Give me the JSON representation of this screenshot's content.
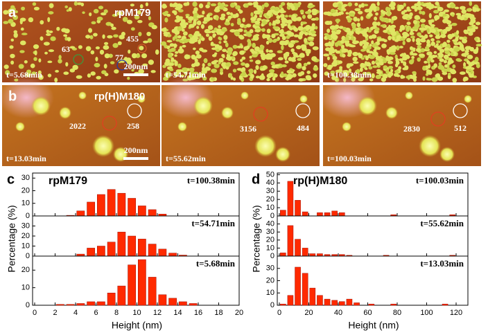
{
  "panel_a": {
    "letter": "a",
    "sample": "rpM179",
    "scale_bar": "200nm",
    "images": [
      {
        "time": "t=5.68min",
        "labels": [
          "63",
          "77",
          "455"
        ]
      },
      {
        "time": "t=54.71min"
      },
      {
        "time": "t=100.38min"
      }
    ]
  },
  "panel_b": {
    "letter": "b",
    "sample": "rp(H)M180",
    "scale_bar": "200nm",
    "images": [
      {
        "time": "t=13.03min",
        "labels": [
          "2022",
          "258"
        ]
      },
      {
        "time": "t=55.62min",
        "labels": [
          "3156",
          "484"
        ]
      },
      {
        "time": "t=100.03min",
        "labels": [
          "2830",
          "512"
        ]
      }
    ]
  },
  "chart_data": [
    {
      "type": "histogram",
      "letter": "c",
      "title": "rpM179",
      "ylabel": "Percentage (%)",
      "annotation": "t=100.38min",
      "color": "#ff2a00",
      "bins": [
        3,
        4,
        5,
        6,
        7,
        8,
        9,
        10,
        11,
        12,
        13
      ],
      "values": [
        0.5,
        4,
        11,
        17,
        21,
        18,
        14,
        8,
        5,
        1.5
      ],
      "xlim": [
        0,
        20
      ],
      "ylim": [
        0,
        34
      ],
      "yticks": [
        0,
        10,
        20,
        30
      ]
    },
    {
      "type": "histogram",
      "annotation": "t=54.71min",
      "color": "#ff2a00",
      "bins": [
        4,
        5,
        6,
        7,
        8,
        9,
        10,
        11,
        12,
        13,
        14,
        15
      ],
      "values": [
        2,
        8,
        10,
        14,
        24,
        20,
        17,
        12,
        7,
        3,
        1
      ],
      "xlim": [
        0,
        20
      ],
      "ylim": [
        0,
        40
      ],
      "yticks": [
        0,
        10,
        20,
        30
      ]
    },
    {
      "type": "histogram",
      "annotation": "t=5.68min",
      "xlabel": "Height (nm)",
      "color": "#ff2a00",
      "bins": [
        2,
        3,
        4,
        5,
        6,
        7,
        8,
        9,
        10,
        11,
        12,
        13,
        14,
        15,
        16
      ],
      "values": [
        0.5,
        0.5,
        1,
        2,
        2,
        7,
        11,
        23,
        26,
        16,
        6,
        4,
        2,
        1
      ],
      "xlim": [
        0,
        20
      ],
      "ylim": [
        0,
        28
      ],
      "xticks": [
        0,
        2,
        4,
        6,
        8,
        10,
        12,
        14,
        16,
        18,
        20
      ],
      "yticks": [
        0,
        10,
        20
      ]
    },
    {
      "type": "histogram",
      "letter": "d",
      "title": "rp(H)M180",
      "ylabel": "Percentage (%)",
      "annotation": "t=100.03min",
      "color": "#ff2a00",
      "bins": [
        0,
        5,
        10,
        15,
        20,
        25,
        30,
        35,
        40,
        45,
        50,
        55,
        60,
        65,
        70,
        75,
        80,
        85,
        90,
        95,
        100,
        105,
        110,
        115,
        120
      ],
      "values": [
        7,
        42,
        19,
        5,
        0,
        4,
        4,
        6,
        4,
        0,
        0,
        0,
        0,
        0,
        0,
        1.5,
        0,
        0,
        0,
        0,
        0,
        0,
        0,
        1.5
      ],
      "xlim": [
        0,
        128
      ],
      "ylim": [
        0,
        52
      ],
      "yticks": [
        0,
        10,
        20,
        30,
        40,
        50
      ]
    },
    {
      "type": "histogram",
      "annotation": "t=55.62min",
      "color": "#ff2a00",
      "bins": [
        0,
        5,
        10,
        15,
        20,
        25,
        30,
        35,
        40,
        45,
        50,
        55,
        60,
        65,
        70,
        75,
        80,
        85,
        90,
        95,
        100,
        105,
        110,
        115,
        120
      ],
      "values": [
        4,
        38,
        21,
        10,
        3,
        3,
        2,
        2,
        2,
        1,
        0,
        0,
        0,
        0,
        1,
        0,
        0,
        0,
        0,
        0,
        0,
        0,
        0,
        1
      ],
      "xlim": [
        0,
        128
      ],
      "ylim": [
        0,
        50
      ],
      "yticks": [
        0,
        10,
        20,
        30,
        40
      ]
    },
    {
      "type": "histogram",
      "annotation": "t=13.03min",
      "xlabel": "Height (nm)",
      "color": "#ff2a00",
      "bins": [
        0,
        5,
        10,
        15,
        20,
        25,
        30,
        35,
        40,
        45,
        50,
        55,
        60,
        65,
        70,
        75,
        80,
        85,
        90,
        95,
        100,
        105,
        110,
        115,
        120
      ],
      "values": [
        1,
        8,
        31,
        26,
        14,
        8,
        5,
        4,
        3,
        5,
        2,
        0,
        1,
        0,
        0,
        1,
        0,
        0,
        0,
        0,
        0,
        0,
        1,
        0
      ],
      "xlim": [
        0,
        128
      ],
      "ylim": [
        0,
        40
      ],
      "xticks": [
        0,
        20,
        40,
        60,
        80,
        100,
        120
      ],
      "yticks": [
        0,
        10,
        20,
        30
      ]
    }
  ]
}
